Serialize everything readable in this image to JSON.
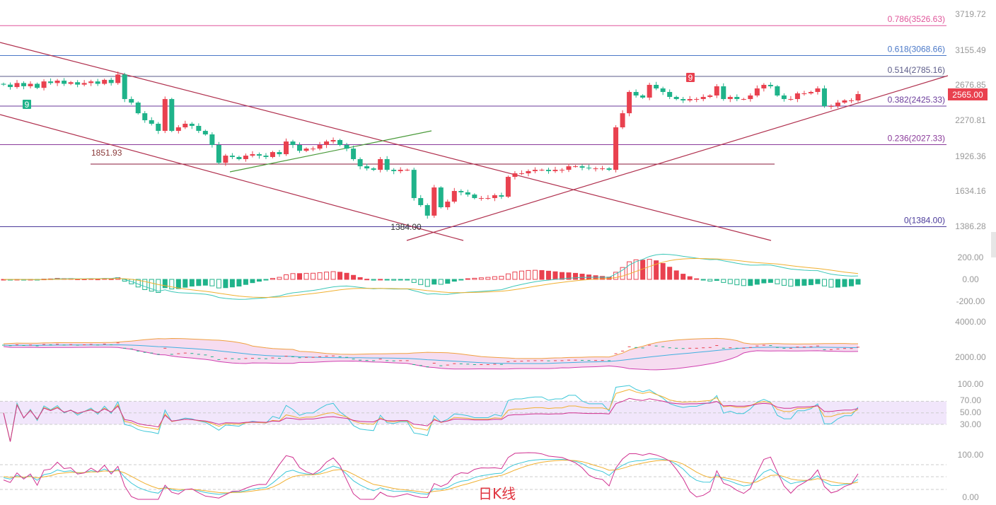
{
  "chart_data": {
    "type": "candlestick",
    "scale": "log",
    "y_ticks": [
      "3719.72",
      "3155.49",
      "2676.85",
      "2270.81",
      "1926.36",
      "1634.16",
      "1386.28"
    ],
    "current_price": "2565.00",
    "first_open": 2690,
    "closes": [
      2680,
      2650,
      2700,
      2660,
      2690,
      2640,
      2720,
      2700,
      2730,
      2690,
      2710,
      2680,
      2700,
      2720,
      2690,
      2740,
      2700,
      2809,
      2506,
      2465,
      2346,
      2271,
      2234,
      2161,
      2506,
      2161,
      2197,
      2234,
      2212,
      2161,
      2126,
      2024,
      1863,
      1926,
      1914,
      1895,
      1926,
      1939,
      1926,
      1914,
      1958,
      1939,
      2057,
      2024,
      1970,
      1990,
      1990,
      2024,
      2057,
      2071,
      2024,
      1990,
      1895,
      1833,
      1815,
      1803,
      1895,
      1803,
      1792,
      1803,
      1803,
      1581,
      1530,
      1457,
      1661,
      1515,
      1555,
      1634,
      1624,
      1607,
      1581,
      1581,
      1581,
      1602,
      1591,
      1745,
      1774,
      1774,
      1792,
      1803,
      1803,
      1792,
      1803,
      1803,
      1833,
      1833,
      1821,
      1815,
      1815,
      1815,
      1803,
      2197,
      2346,
      2590,
      2548,
      2523,
      2677,
      2633,
      2590,
      2531,
      2506,
      2490,
      2506,
      2506,
      2531,
      2548,
      2659,
      2506,
      2531,
      2506,
      2506,
      2548,
      2633,
      2677,
      2659,
      2548,
      2506,
      2506,
      2573,
      2573,
      2590,
      2633,
      2425,
      2425,
      2465,
      2490,
      2490,
      2565
    ],
    "fib_levels": [
      {
        "label": "0.786(3526.63)",
        "price": 3526.63,
        "color": "#e0559a"
      },
      {
        "label": "0.618(3068.66)",
        "price": 3068.66,
        "color": "#4a78c8"
      },
      {
        "label": "0.514(2785.16)",
        "price": 2785.16,
        "color": "#5a5a88"
      },
      {
        "label": "0.382(2425.33)",
        "price": 2425.33,
        "color": "#6a3a9a"
      },
      {
        "label": "0.236(2027.33)",
        "price": 2027.33,
        "color": "#8a3a9a"
      },
      {
        "label": "0(1384.00)",
        "price": 1384.0,
        "color": "#4a3a9a"
      }
    ],
    "support_line": {
      "label": "1851.93",
      "price": 1851.93
    },
    "low_label": "1384.00",
    "td_markers": [
      "9",
      "9"
    ],
    "macd_ticks": [
      "200.00",
      "0.00",
      "-200.00"
    ],
    "boll_ticks": [
      "4000.00",
      "2000.00"
    ],
    "rsi_ticks": [
      "100.00",
      "70.00",
      "50.00",
      "30.00"
    ],
    "kdj_ticks": [
      "100.00",
      "0.00"
    ],
    "colors": {
      "up": "#e9414f",
      "down": "#1fb38a",
      "trend": "#b0304e",
      "channel_green": "#4a9a3a"
    }
  },
  "period_label": "日K线"
}
